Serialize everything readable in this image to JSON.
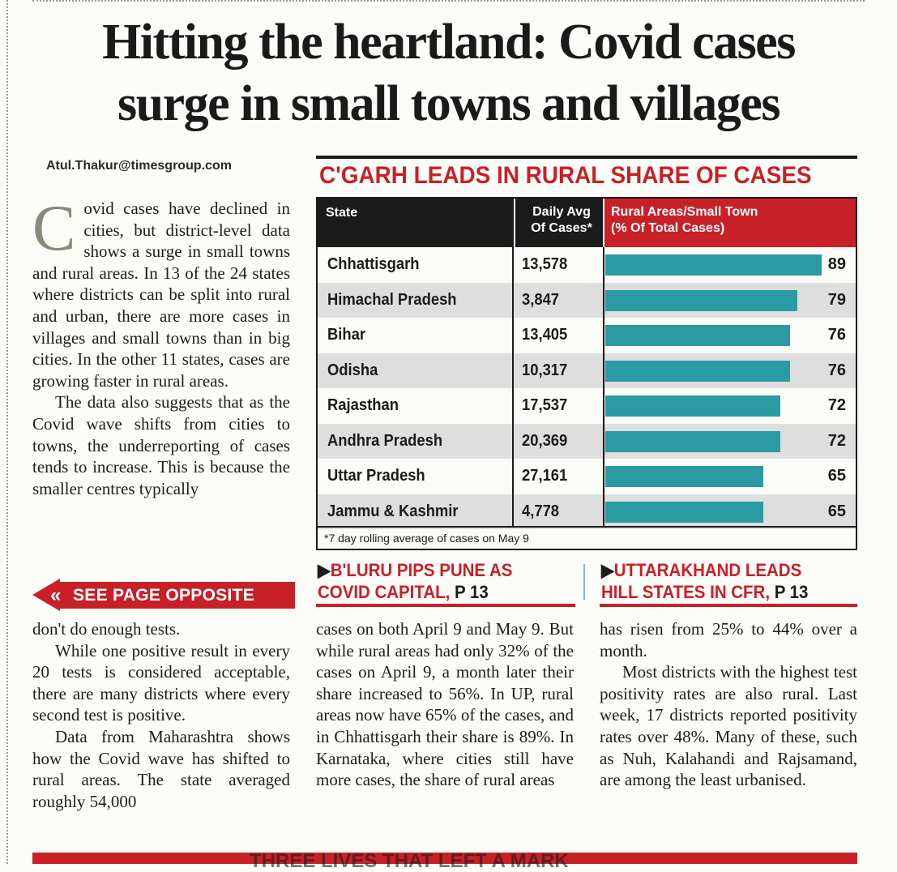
{
  "headline": {
    "line1": "Hitting the heartland: Covid cases",
    "line2": "surge in small towns and villages"
  },
  "byline": "Atul.Thakur@timesgroup.com",
  "article": {
    "dropcap": "C",
    "col1_para1_rest": "ovid cases have declined in cities, but district-level data shows a surge in small towns and rural areas. In 13 of the 24 states where districts can be split into rural and urban, there are more cases in villages and small towns than in big cities. In the other 11 states, cases are growing faster in rural areas.",
    "col1_para2": "The data also suggests that as the Covid wave shifts from cities to towns, the underreporting of cases tends to increase. This is because the smaller centres typically",
    "col1_cont": "don't do enough tests.",
    "col1_para3": "While one positive result in every 20 tests is considered acceptable, there are many districts where every second test is positive.",
    "col1_para4": "Data from Maharashtra shows how the Covid wave has shifted to rural areas. The state averaged roughly 54,000",
    "col2_text": "cases on both April 9 and May 9. But while rural areas had only 32% of the cases on April 9, a month later their share increased to 56%. In UP, rural areas now have 65% of the cases, and in Chhattisgarh their share is 89%. In Karnataka, where cities still have more cases, the share of rural areas",
    "col3_text": "has risen from 25% to 44% over a month.",
    "col3_para2": "Most districts with the highest test positivity rates are also rural. Last week, 17 districts reported positivity rates over 48%. Many of these, such as Nuh, Kalahandi and Rajsamand, are among the least urbanised."
  },
  "see_page": {
    "chevrons": "«",
    "label": "SEE PAGE OPPOSITE"
  },
  "chart_data": {
    "type": "table",
    "title": "C'GARH LEADS IN RURAL SHARE OF CASES",
    "columns": [
      "State",
      "Daily Avg Of Cases*",
      "Rural Areas/Small Town (% Of Total Cases)"
    ],
    "header_state": "State",
    "header_avg_1": "Daily Avg",
    "header_avg_2": "Of Cases*",
    "header_rural_1": "Rural Areas/Small Town",
    "header_rural_2": "(% Of Total Cases)",
    "rows": [
      {
        "state": "Chhattisgarh",
        "avg": "13,578",
        "rural_pct": 89
      },
      {
        "state": "Himachal Pradesh",
        "avg": "3,847",
        "rural_pct": 79
      },
      {
        "state": "Bihar",
        "avg": "13,405",
        "rural_pct": 76
      },
      {
        "state": "Odisha",
        "avg": "10,317",
        "rural_pct": 76
      },
      {
        "state": "Rajasthan",
        "avg": "17,537",
        "rural_pct": 72
      },
      {
        "state": "Andhra Pradesh",
        "avg": "20,369",
        "rural_pct": 72
      },
      {
        "state": "Uttar Pradesh",
        "avg": "27,161",
        "rural_pct": 65
      },
      {
        "state": "Jammu & Kashmir",
        "avg": "4,778",
        "rural_pct": 65
      }
    ],
    "bar_max": 89,
    "footnote": "*7 day rolling average of cases on May 9",
    "colors": {
      "bar": "#2a9aa3",
      "header_dark": "#1b1b1b",
      "header_red": "#c72127",
      "title": "#c72127"
    }
  },
  "promos": [
    {
      "marker": "▶",
      "line1": "B'LURU PIPS PUNE AS",
      "line2": "COVID CAPITAL,",
      "page": "P 13"
    },
    {
      "marker": "▶",
      "line1": "UTTARAKHAND LEADS",
      "line2": "HILL STATES IN CFR,",
      "page": "P 13"
    }
  ],
  "bottom_banner": "THREE LIVES THAT LEFT A MARK"
}
